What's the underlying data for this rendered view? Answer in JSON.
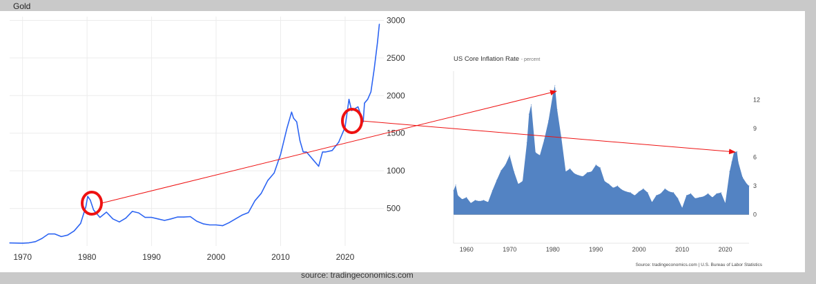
{
  "page_title": "Gold",
  "source_footer": "source: tradingeconomics.com",
  "chart_data": [
    {
      "type": "line",
      "title": "Gold",
      "color": "#2c64f2",
      "xlim": [
        1968,
        2026
      ],
      "ylim": [
        0,
        3050
      ],
      "x_ticks": [
        1970,
        1980,
        1990,
        2000,
        2010,
        2020
      ],
      "x_tick_labels": [
        "1970",
        "1980",
        "1990",
        "2000",
        "2010",
        "2020"
      ],
      "y_ticks": [
        500,
        1000,
        1500,
        2000,
        2500,
        3000
      ],
      "y_tick_labels": [
        "500",
        "1000",
        "1500",
        "2000",
        "2500",
        "3000"
      ],
      "y_axis_side": "right",
      "grid": true,
      "x": [
        1968,
        1970,
        1971,
        1972,
        1973,
        1974,
        1975,
        1976,
        1977,
        1978,
        1979,
        1979.8,
        1980.1,
        1980.5,
        1981,
        1982,
        1983,
        1984,
        1985,
        1986,
        1987,
        1988,
        1989,
        1990,
        1991,
        1992,
        1993,
        1994,
        1995,
        1996,
        1997,
        1998,
        1999,
        2000,
        2001,
        2002,
        2003,
        2004,
        2005,
        2006,
        2007,
        2008,
        2009,
        2010,
        2011,
        2011.7,
        2012,
        2012.5,
        2013,
        2013.5,
        2014,
        2015,
        2015.9,
        2016.5,
        2017,
        2018,
        2019,
        2019.6,
        2020,
        2020.6,
        2021,
        2022,
        2022.8,
        2023,
        2023.5,
        2024,
        2024.5,
        2025,
        2025.3
      ],
      "y": [
        40,
        38,
        42,
        58,
        100,
        160,
        160,
        125,
        145,
        200,
        300,
        520,
        660,
        610,
        480,
        380,
        450,
        360,
        320,
        370,
        460,
        440,
        380,
        380,
        360,
        340,
        360,
        385,
        385,
        390,
        330,
        295,
        280,
        280,
        270,
        310,
        360,
        410,
        445,
        600,
        700,
        870,
        970,
        1220,
        1570,
        1780,
        1700,
        1650,
        1400,
        1250,
        1250,
        1150,
        1060,
        1250,
        1250,
        1270,
        1380,
        1500,
        1580,
        1950,
        1800,
        1850,
        1650,
        1900,
        1950,
        2050,
        2350,
        2700,
        2950
      ]
    },
    {
      "type": "area",
      "title": "US Core Inflation Rate",
      "subtitle": "percent",
      "color": "#5383c3",
      "xlim": [
        1957,
        2025.5
      ],
      "ylim": [
        -3,
        15
      ],
      "x_ticks": [
        1960,
        1970,
        1980,
        1990,
        2000,
        2010,
        2020
      ],
      "x_tick_labels": [
        "1960",
        "1970",
        "1980",
        "1990",
        "2000",
        "2010",
        "2020"
      ],
      "y_ticks": [
        0,
        3,
        6,
        9,
        12
      ],
      "y_tick_labels": [
        "0",
        "3",
        "6",
        "9",
        "12"
      ],
      "y_axis_side": "right",
      "grid": false,
      "x": [
        1957,
        1957.5,
        1958,
        1959,
        1960,
        1961,
        1962,
        1963,
        1964,
        1965,
        1966,
        1967,
        1968,
        1969,
        1970,
        1971,
        1972,
        1973,
        1974,
        1974.5,
        1975,
        1976,
        1977,
        1978,
        1979,
        1980,
        1980.5,
        1981,
        1982,
        1983,
        1984,
        1985,
        1986,
        1987,
        1988,
        1989,
        1990,
        1991,
        1992,
        1993,
        1994,
        1995,
        1996,
        1997,
        1998,
        1999,
        2000,
        2001,
        2002,
        2003,
        2004,
        2005,
        2006,
        2007,
        2008,
        2009,
        2010,
        2011,
        2012,
        2013,
        2014,
        2015,
        2016,
        2017,
        2018,
        2019,
        2020,
        2021,
        2021.5,
        2022,
        2022.7,
        2023,
        2024,
        2025,
        2025.5
      ],
      "y": [
        2.5,
        3.1,
        2.0,
        1.6,
        1.8,
        1.2,
        1.5,
        1.4,
        1.5,
        1.3,
        2.5,
        3.6,
        4.6,
        5.2,
        6.2,
        4.5,
        3.2,
        3.5,
        7.5,
        10.5,
        11.5,
        6.5,
        6.2,
        7.8,
        9.8,
        12.5,
        13.5,
        11.0,
        8.0,
        4.5,
        4.8,
        4.3,
        4.1,
        4.0,
        4.4,
        4.5,
        5.2,
        4.9,
        3.5,
        3.2,
        2.8,
        3.0,
        2.6,
        2.4,
        2.3,
        2.0,
        2.4,
        2.7,
        2.3,
        1.3,
        2.0,
        2.2,
        2.7,
        2.4,
        2.3,
        1.7,
        0.7,
        2.0,
        2.2,
        1.7,
        1.8,
        1.9,
        2.2,
        1.8,
        2.2,
        2.3,
        1.2,
        4.5,
        5.5,
        6.5,
        6.6,
        5.5,
        3.9,
        3.2,
        3.0
      ]
    }
  ],
  "inflation_source": "Source: tradingeconomics.com | U.S. Bureau of Labor Statistics",
  "annotation_color": "#ee1111"
}
